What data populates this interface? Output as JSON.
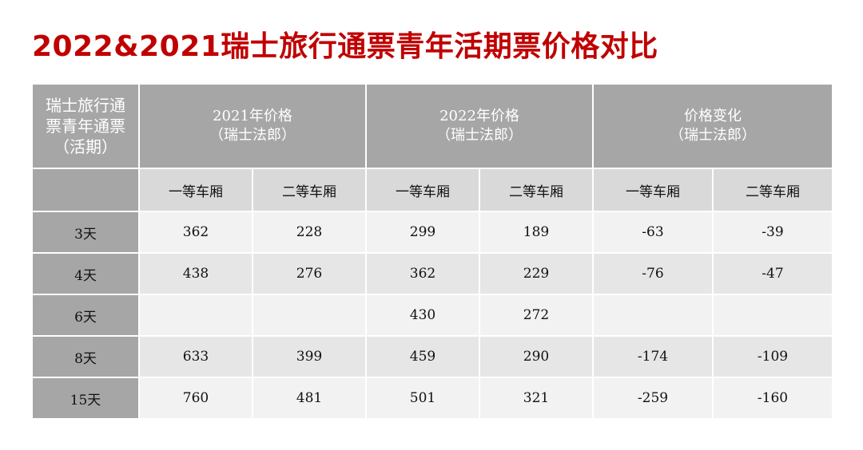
{
  "title": "2022&2021瑞士旅行通票青年活期票价格对比",
  "table": {
    "corner_lines": [
      "瑞士旅行通",
      "票青年通票",
      "（活期）"
    ],
    "groups": [
      {
        "line1": "2021年价格",
        "line2": "（瑞士法郎）"
      },
      {
        "line1": "2022年价格",
        "line2": "（瑞士法郎）"
      },
      {
        "line1": "价格变化",
        "line2": "（瑞士法郎）"
      }
    ],
    "subheaders": [
      "一等车厢",
      "二等车厢",
      "一等车厢",
      "二等车厢",
      "一等车厢",
      "二等车厢"
    ],
    "rows": [
      {
        "label": "3天",
        "cells": [
          "362",
          "228",
          "299",
          "189",
          "-63",
          "-39"
        ]
      },
      {
        "label": "4天",
        "cells": [
          "438",
          "276",
          "362",
          "229",
          "-76",
          "-47"
        ]
      },
      {
        "label": "6天",
        "cells": [
          "",
          "",
          "430",
          "272",
          "",
          ""
        ]
      },
      {
        "label": "8天",
        "cells": [
          "633",
          "399",
          "459",
          "290",
          "-174",
          "-109"
        ]
      },
      {
        "label": "15天",
        "cells": [
          "760",
          "481",
          "501",
          "321",
          "-259",
          "-160"
        ]
      }
    ]
  }
}
